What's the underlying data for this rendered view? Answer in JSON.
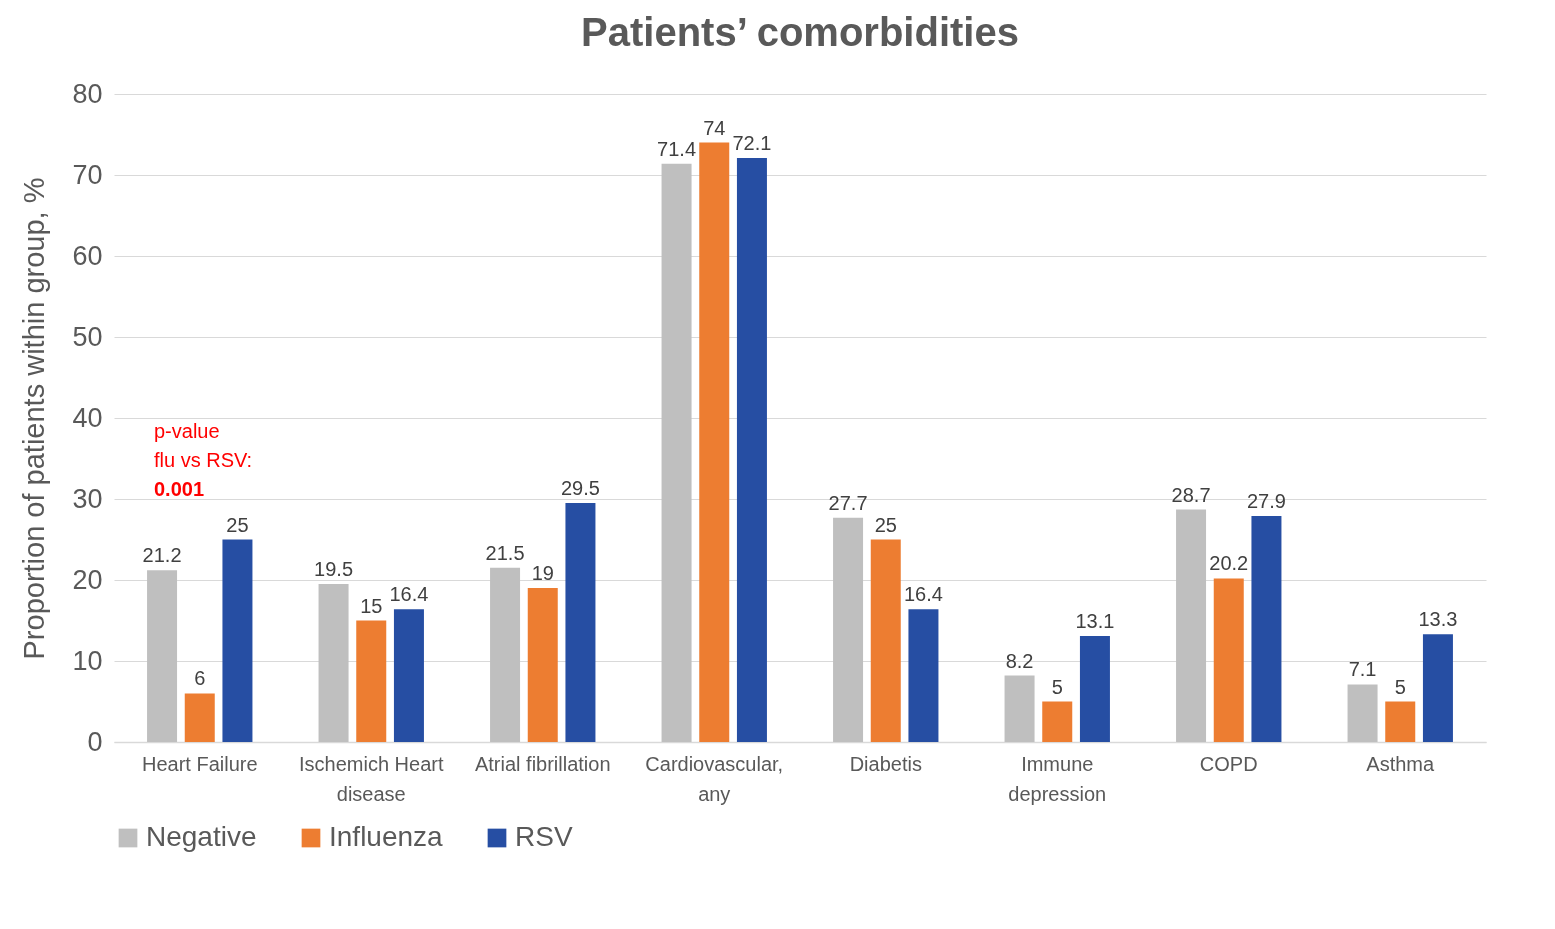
{
  "chart_data": {
    "type": "bar",
    "title": "Patients’ comorbidities",
    "ylabel": "Proportion of patients within group, %",
    "categories": [
      "Heart Failure",
      "Ischemich Heart disease",
      "Atrial fibrillation",
      "Cardiovascular, any",
      "Diabetis",
      "Immune depression",
      "COPD",
      "Asthma"
    ],
    "series": [
      {
        "name": "Negative",
        "color": "#bfbfbf",
        "values": [
          21.2,
          19.5,
          21.5,
          71.4,
          27.7,
          8.2,
          28.7,
          7.1
        ]
      },
      {
        "name": "Influenza",
        "color": "#ed7d31",
        "values": [
          6,
          15,
          19,
          74,
          25,
          5,
          20.2,
          5
        ]
      },
      {
        "name": "RSV",
        "color": "#264ea3",
        "values": [
          25,
          16.4,
          29.5,
          72.1,
          16.4,
          13.1,
          27.9,
          13.3
        ]
      }
    ],
    "ylim": [
      0,
      80
    ],
    "yticks": [
      0,
      10,
      20,
      30,
      40,
      50,
      60,
      70,
      80
    ],
    "grid": "y",
    "legend": "bottom",
    "data_labels": true,
    "annotations": [
      "p-value",
      "flu vs RSV:",
      "0.001"
    ]
  }
}
